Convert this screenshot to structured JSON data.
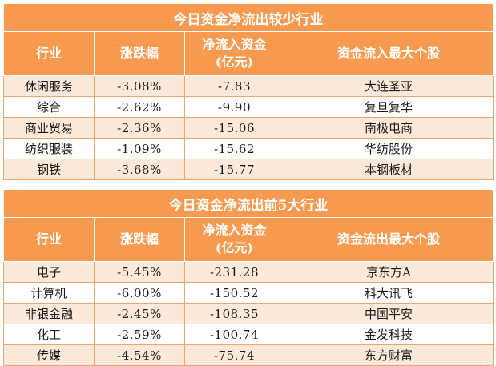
{
  "tables": [
    {
      "title": "今日资金净流出较少行业",
      "headers": [
        "行业",
        "涨跌幅",
        "净流入资金\n(亿元)",
        "资金流入最大个股"
      ],
      "rows": [
        [
          "休闲服务",
          "-3.08%",
          "-7.83",
          "大连圣亚"
        ],
        [
          "综合",
          "-2.62%",
          "-9.90",
          "复旦复华"
        ],
        [
          "商业贸易",
          "-2.36%",
          "-15.06",
          "南极电商"
        ],
        [
          "纺织服装",
          "-1.09%",
          "-15.62",
          "华纺股份"
        ],
        [
          "钢铁",
          "-3.68%",
          "-15.77",
          "本钢板材"
        ]
      ]
    },
    {
      "title": "今日资金净流出前5大行业",
      "headers": [
        "行业",
        "涨跌幅",
        "净流入资金\n(亿元)",
        "资金流出最大个股"
      ],
      "rows": [
        [
          "电子",
          "-5.45%",
          "-231.28",
          "京东方A"
        ],
        [
          "计算机",
          "-6.00%",
          "-150.52",
          "科大讯飞"
        ],
        [
          "非银金融",
          "-2.45%",
          "-108.35",
          "中国平安"
        ],
        [
          "化工",
          "-2.59%",
          "-100.74",
          "金发科技"
        ],
        [
          "传媒",
          "-4.54%",
          "-75.74",
          "东方财富"
        ]
      ]
    }
  ],
  "colors": {
    "header_bg": "#f79a4f",
    "header_text": "#ffffff",
    "row_alt_bg": "#fde9d9",
    "row_bg": "#ffffff",
    "border": "#f2a46a"
  }
}
